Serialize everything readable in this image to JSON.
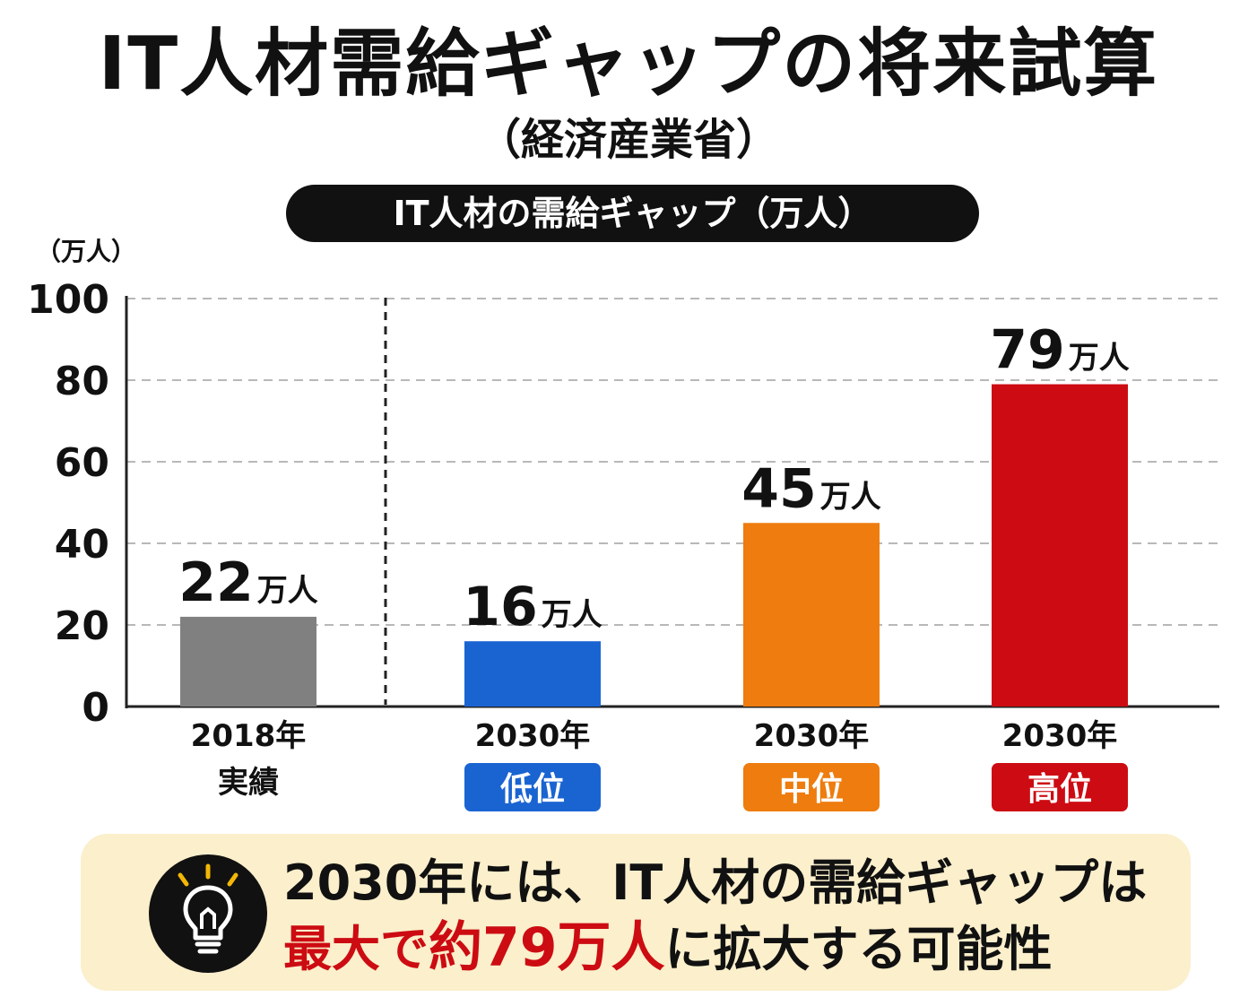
{
  "header": {
    "title": "IT人材需給ギャップの将来試算",
    "subtitle": "（経済産業省）",
    "chart_label": "IT人材の需給ギャップ（万人）"
  },
  "callout": {
    "icon": "lightbulb-icon",
    "line1": "2030年には、IT人材の需給ギャップは",
    "line2_emphasis_1": "最大で",
    "line2_emphasis_2": "約79万人",
    "line2_rest": "に拡大する可能性"
  },
  "chart_data": {
    "type": "bar",
    "unit_label": "（万人）",
    "ylim": [
      0,
      100
    ],
    "yticks": [
      0,
      20,
      40,
      60,
      80,
      100
    ],
    "grid": true,
    "bars": [
      {
        "year": "2018年",
        "sublabel": "実績",
        "value": 22,
        "value_text": "22",
        "unit": "万人",
        "color": "#808080",
        "badge": false
      },
      {
        "year": "2030年",
        "sublabel": "低位",
        "value": 16,
        "value_text": "16",
        "unit": "万人",
        "color": "#1a64d2",
        "badge": true
      },
      {
        "year": "2030年",
        "sublabel": "中位",
        "value": 45,
        "value_text": "45",
        "unit": "万人",
        "color": "#ee7c0e",
        "badge": true
      },
      {
        "year": "2030年",
        "sublabel": "高位",
        "value": 79,
        "value_text": "79",
        "unit": "万人",
        "color": "#cc0c12",
        "badge": true
      }
    ]
  }
}
